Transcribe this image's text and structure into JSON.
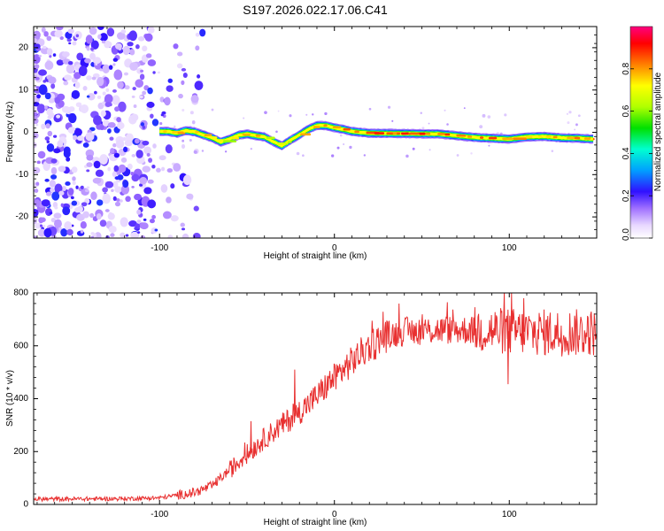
{
  "title": "S197.2026.022.17.06.C41",
  "chart_data": [
    {
      "type": "heatmap",
      "name": "spectrogram",
      "xlabel": "Height of straight line (km)",
      "ylabel": "Frequency (Hz)",
      "xlim": [
        -172,
        150
      ],
      "ylim": [
        -25,
        25
      ],
      "x_ticks": [
        -100,
        0,
        100
      ],
      "y_ticks": [
        -20,
        -10,
        0,
        10,
        20
      ],
      "colorbar": {
        "label": "Normalized spectral amplitude",
        "ticks": [
          0.0,
          0.2,
          0.4,
          0.6,
          0.8
        ],
        "range": [
          0,
          1
        ]
      },
      "ridge": {
        "x": [
          -100,
          -95,
          -90,
          -85,
          -80,
          -75,
          -70,
          -65,
          -60,
          -55,
          -50,
          -45,
          -40,
          -35,
          -30,
          -25,
          -20,
          -15,
          -10,
          -5,
          0,
          5,
          10,
          20,
          40,
          60,
          80,
          100,
          110,
          120,
          130,
          140,
          148
        ],
        "freq": [
          0.2,
          0.2,
          -0.2,
          0.4,
          0.1,
          -0.6,
          -1.3,
          -2.3,
          -1.6,
          -0.7,
          -0.4,
          -0.8,
          -1.1,
          -2.2,
          -3.2,
          -1.8,
          -0.6,
          0.7,
          1.6,
          1.6,
          1.1,
          0.7,
          0.2,
          -0.2,
          -0.3,
          -0.4,
          -1.2,
          -1.6,
          -1.1,
          -1.0,
          -1.3,
          -1.4,
          -1.6
        ],
        "amplitude": [
          0.85,
          0.85,
          0.9,
          0.8,
          0.85,
          0.85,
          0.75,
          0.7,
          0.75,
          0.8,
          0.85,
          0.8,
          0.7,
          0.75,
          0.7,
          0.75,
          0.85,
          0.85,
          0.9,
          0.9,
          0.9,
          0.9,
          0.9,
          0.92,
          0.92,
          0.92,
          0.9,
          0.88,
          0.85,
          0.85,
          0.85,
          0.85,
          0.85
        ]
      },
      "noise_region_x": [
        -172,
        -75
      ]
    },
    {
      "type": "line",
      "name": "snr",
      "xlabel": "Height of straight line (km)",
      "ylabel": "SNR (10 * v/v)",
      "xlim": [
        -172,
        150
      ],
      "ylim": [
        0,
        800
      ],
      "x_ticks": [
        -100,
        0,
        100
      ],
      "y_ticks": [
        0,
        200,
        400,
        600,
        800
      ],
      "color": "#e83030",
      "trend": {
        "x": [
          -172,
          -120,
          -100,
          -90,
          -80,
          -70,
          -60,
          -50,
          -40,
          -30,
          -20,
          -10,
          0,
          10,
          20,
          30,
          40,
          60,
          80,
          100,
          120,
          150
        ],
        "snr": [
          20,
          22,
          25,
          35,
          45,
          70,
          130,
          190,
          250,
          300,
          350,
          410,
          480,
          540,
          600,
          640,
          655,
          660,
          660,
          655,
          650,
          650
        ]
      },
      "spikes": [
        {
          "x": -48,
          "snr": 315
        },
        {
          "x": -23,
          "snr": 510
        },
        {
          "x": 101,
          "snr": 800
        },
        {
          "x": 108,
          "snr": 780
        },
        {
          "x": 99,
          "snr": 455
        }
      ]
    }
  ]
}
